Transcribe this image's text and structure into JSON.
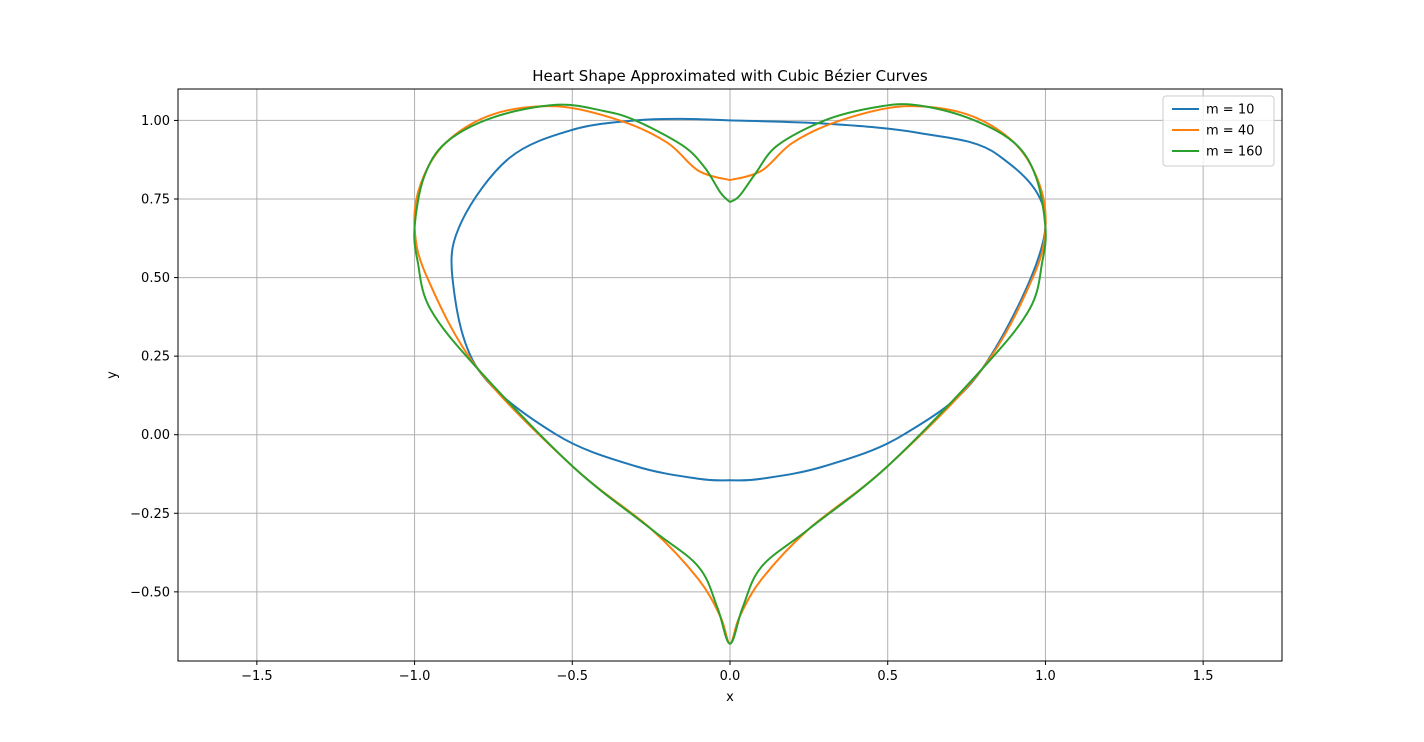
{
  "chart_data": {
    "type": "line",
    "title": "Heart Shape Approximated with Cubic Bézier Curves",
    "xlabel": "x",
    "ylabel": "y",
    "xlim": [
      -1.75,
      1.75
    ],
    "ylim": [
      -0.72,
      1.1
    ],
    "xticks": [
      -1.5,
      -1.0,
      -0.5,
      0.0,
      0.5,
      1.0,
      1.5
    ],
    "xtick_labels": [
      "−1.5",
      "−1.0",
      "−0.5",
      "0.0",
      "0.5",
      "1.0",
      "1.5"
    ],
    "yticks": [
      -0.5,
      -0.25,
      0.0,
      0.25,
      0.5,
      0.75,
      1.0
    ],
    "ytick_labels": [
      "−0.50",
      "−0.25",
      "0.00",
      "0.25",
      "0.50",
      "0.75",
      "1.00"
    ],
    "grid": true,
    "legend_position": "top-right",
    "series": [
      {
        "name": "m = 10",
        "color": "#1f77b4",
        "x": [
          0.0,
          0.3,
          0.6,
          0.85,
          1.0,
          0.8,
          0.55,
          0.3,
          0.1,
          0.0,
          -0.1,
          -0.3,
          -0.55,
          -0.8,
          -0.88,
          -0.85,
          -0.7,
          -0.5,
          -0.3,
          -0.15,
          0.0
        ],
        "y": [
          1.0,
          0.99,
          0.96,
          0.89,
          0.66,
          0.21,
          0.0,
          -0.1,
          -0.14,
          -0.145,
          -0.14,
          -0.1,
          0.0,
          0.21,
          0.5,
          0.68,
          0.88,
          0.97,
          1.0,
          1.005,
          1.0
        ]
      },
      {
        "name": "m = 40",
        "color": "#ff7f0e",
        "x": [
          0.0,
          0.1,
          0.2,
          0.35,
          0.55,
          0.75,
          0.9,
          0.98,
          1.0,
          0.96,
          0.8,
          0.5,
          0.25,
          0.1,
          0.03,
          0.0,
          -0.03,
          -0.1,
          -0.25,
          -0.5,
          -0.8,
          -0.96,
          -1.0,
          -0.98,
          -0.9,
          -0.75,
          -0.55,
          -0.35,
          -0.2,
          -0.1,
          0.0
        ],
        "y": [
          0.81,
          0.84,
          0.93,
          1.0,
          1.045,
          1.02,
          0.93,
          0.8,
          0.66,
          0.5,
          0.21,
          -0.1,
          -0.3,
          -0.46,
          -0.58,
          -0.665,
          -0.58,
          -0.46,
          -0.3,
          -0.1,
          0.21,
          0.5,
          0.66,
          0.8,
          0.93,
          1.02,
          1.045,
          1.0,
          0.93,
          0.84,
          0.81
        ]
      },
      {
        "name": "m = 160",
        "color": "#2ca02c",
        "x": [
          0.0,
          0.03,
          0.08,
          0.15,
          0.3,
          0.45,
          0.58,
          0.75,
          0.9,
          0.97,
          1.0,
          0.99,
          0.95,
          0.8,
          0.5,
          0.25,
          0.1,
          0.04,
          0.0,
          -0.04,
          -0.1,
          -0.25,
          -0.5,
          -0.8,
          -0.95,
          -0.99,
          -1.0,
          -0.97,
          -0.9,
          -0.75,
          -0.55,
          -0.4,
          -0.3,
          -0.15,
          -0.08,
          -0.03,
          0.0
        ],
        "y": [
          0.74,
          0.76,
          0.83,
          0.92,
          1.0,
          1.04,
          1.05,
          1.01,
          0.93,
          0.82,
          0.66,
          0.55,
          0.4,
          0.21,
          -0.1,
          -0.3,
          -0.42,
          -0.55,
          -0.665,
          -0.55,
          -0.42,
          -0.3,
          -0.1,
          0.21,
          0.4,
          0.55,
          0.66,
          0.82,
          0.93,
          1.01,
          1.05,
          1.03,
          1.0,
          0.92,
          0.85,
          0.77,
          0.74
        ]
      }
    ]
  }
}
